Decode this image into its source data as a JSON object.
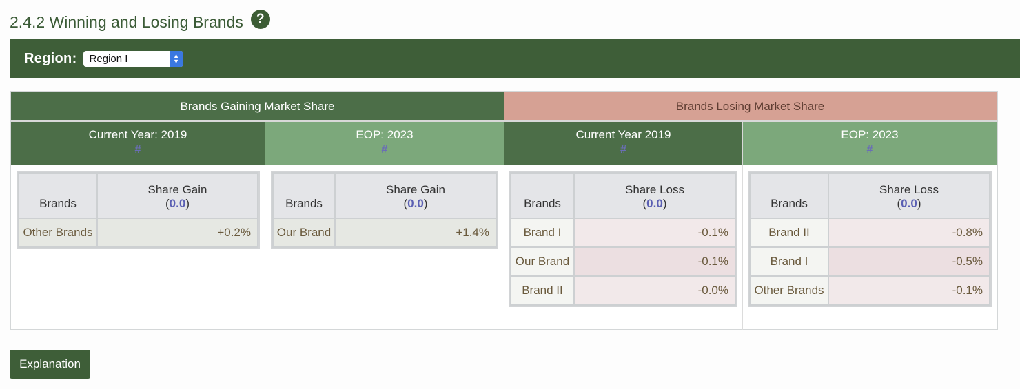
{
  "page": {
    "title": "2.4.2 Winning and Losing Brands",
    "help_icon": "?"
  },
  "region": {
    "label": "Region:",
    "selected": "Region I"
  },
  "panels": {
    "gaining_title": "Brands Gaining Market Share",
    "losing_title": "Brands Losing Market Share"
  },
  "columns": [
    {
      "header": "Current Year: 2019",
      "hash": "#",
      "brands_label": "Brands",
      "metric_label": "Share Gain",
      "metric_value": "0.0",
      "rows": [
        {
          "brand": "Other Brands",
          "value": "+0.2%"
        }
      ]
    },
    {
      "header": "EOP: 2023",
      "hash": "#",
      "brands_label": "Brands",
      "metric_label": "Share Gain",
      "metric_value": "0.0",
      "rows": [
        {
          "brand": "Our Brand",
          "value": "+1.4%"
        }
      ]
    },
    {
      "header": "Current Year 2019",
      "hash": "#",
      "brands_label": "Brands",
      "metric_label": "Share Loss",
      "metric_value": "0.0",
      "rows": [
        {
          "brand": "Brand I",
          "value": "-0.1%"
        },
        {
          "brand": "Our Brand",
          "value": "-0.1%"
        },
        {
          "brand": "Brand II",
          "value": "-0.0%"
        }
      ]
    },
    {
      "header": "EOP: 2023",
      "hash": "#",
      "brands_label": "Brands",
      "metric_label": "Share Loss",
      "metric_value": "0.0",
      "rows": [
        {
          "brand": "Brand II",
          "value": "-0.8%"
        },
        {
          "brand": "Brand I",
          "value": "-0.5%"
        },
        {
          "brand": "Other Brands",
          "value": "-0.1%"
        }
      ]
    }
  ],
  "buttons": {
    "explanation": "Explanation"
  },
  "colors": {
    "brand_green": "#3e5e38",
    "loss_header": "#d6a194",
    "light_green": "#7ca87b"
  }
}
